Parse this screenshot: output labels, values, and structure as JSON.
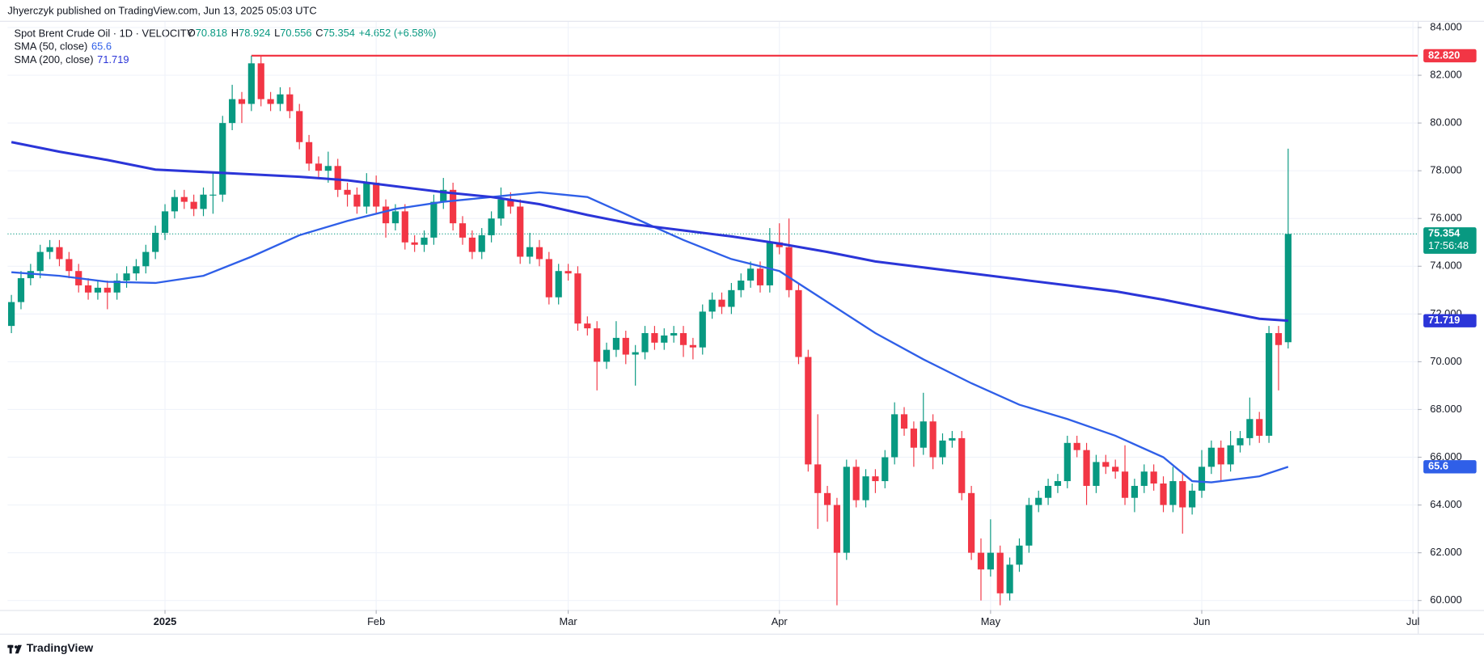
{
  "header": {
    "published": "Jhyerczyk published on TradingView.com, Jun 13, 2025 05:03 UTC",
    "symbol": "Spot Brent Crude Oil · 1D · VELOCITY",
    "ohlc": [
      {
        "key": "O",
        "value": "70.818"
      },
      {
        "key": "H",
        "value": "78.924"
      },
      {
        "key": "L",
        "value": "70.556"
      },
      {
        "key": "C",
        "value": "75.354"
      },
      {
        "key": "",
        "value": "+4.652 (+6.58%)"
      }
    ]
  },
  "chart_data": {
    "type": "candlestick",
    "up_color": "#089981",
    "down_color": "#f23645",
    "grid": true,
    "xlim": [
      -0.4,
      146.5
    ],
    "ylim": [
      59.6,
      84.4
    ],
    "xticks": [
      {
        "value": 16,
        "label": "2025"
      },
      {
        "value": 38,
        "label": "Feb"
      },
      {
        "value": 58,
        "label": "Mar"
      },
      {
        "value": 80,
        "label": "Apr"
      },
      {
        "value": 102,
        "label": "May"
      },
      {
        "value": 124,
        "label": "Jun"
      },
      {
        "value": 146,
        "label": "Jul"
      }
    ],
    "yticks": [
      {
        "value": 60,
        "label": "60.000"
      },
      {
        "value": 62,
        "label": "62.000"
      },
      {
        "value": 64,
        "label": "64.000"
      },
      {
        "value": 66,
        "label": "66.000"
      },
      {
        "value": 68,
        "label": "68.000"
      },
      {
        "value": 70,
        "label": "70.000"
      },
      {
        "value": 72,
        "label": "72.000"
      },
      {
        "value": 74,
        "label": "74.000"
      },
      {
        "value": 76,
        "label": "76.000"
      },
      {
        "value": 78,
        "label": "78.000"
      },
      {
        "value": 80,
        "label": "80.000"
      },
      {
        "value": 82,
        "label": "82.000"
      },
      {
        "value": 84,
        "label": "84.000"
      }
    ],
    "candles": {
      "open": [
        71.5,
        72.5,
        73.5,
        73.8,
        74.6,
        74.8,
        74.3,
        73.8,
        73.2,
        72.9,
        73.1,
        72.9,
        73.4,
        73.7,
        74.0,
        74.6,
        75.4,
        76.3,
        76.9,
        76.7,
        76.4,
        77.0,
        77.0,
        80.0,
        81.0,
        80.8,
        82.5,
        81.0,
        80.8,
        81.2,
        80.5,
        79.2,
        78.3,
        78.0,
        78.2,
        77.2,
        77.0,
        76.5,
        77.5,
        76.5,
        75.8,
        76.3,
        75.0,
        74.9,
        75.2,
        76.7,
        77.2,
        75.8,
        75.2,
        74.6,
        75.3,
        76.0,
        76.8,
        76.5,
        74.4,
        74.8,
        74.3,
        72.7,
        73.8,
        73.7,
        71.6,
        71.4,
        70.0,
        70.5,
        71.0,
        70.3,
        70.4,
        71.2,
        70.8,
        71.1,
        71.2,
        70.7,
        70.6,
        72.1,
        72.6,
        72.3,
        73.0,
        73.4,
        73.9,
        73.2,
        75.0,
        74.8,
        73.0,
        70.2,
        65.7,
        64.5,
        64.0,
        62.0,
        65.6,
        64.2,
        65.2,
        65.0,
        66.0,
        67.8,
        67.2,
        66.4,
        67.5,
        66.0,
        66.7,
        66.8,
        64.5,
        62.0,
        61.3,
        62.0,
        60.3,
        61.5,
        62.3,
        64.0,
        64.3,
        64.8,
        65.0,
        66.6,
        66.3,
        64.8,
        65.8,
        65.6,
        65.4,
        64.3,
        64.8,
        65.4,
        64.9,
        64.0,
        65.0,
        63.9,
        64.6,
        65.6,
        66.4,
        65.7,
        66.5,
        66.8,
        67.6,
        66.9,
        71.2,
        70.818
      ],
      "high": [
        72.8,
        73.8,
        74.1,
        74.9,
        75.1,
        75.1,
        74.6,
        74.1,
        73.5,
        73.4,
        73.4,
        73.7,
        74.0,
        74.3,
        74.9,
        75.7,
        76.6,
        77.2,
        77.2,
        77.0,
        77.3,
        77.9,
        80.3,
        81.6,
        81.3,
        82.82,
        82.8,
        81.3,
        81.5,
        81.5,
        80.8,
        79.5,
        78.6,
        78.8,
        78.5,
        77.5,
        77.3,
        77.9,
        77.8,
        76.8,
        76.6,
        76.6,
        75.3,
        75.5,
        77.0,
        77.7,
        77.5,
        76.1,
        75.5,
        75.6,
        76.3,
        77.3,
        77.1,
        76.8,
        75.4,
        75.1,
        74.6,
        74.1,
        74.1,
        74.0,
        71.9,
        71.7,
        70.8,
        71.7,
        71.3,
        70.7,
        71.5,
        71.5,
        71.4,
        71.5,
        71.5,
        71.0,
        72.4,
        72.9,
        72.9,
        73.3,
        73.7,
        74.2,
        74.2,
        75.6,
        75.8,
        76.0,
        73.3,
        70.5,
        67.8,
        64.8,
        64.3,
        65.9,
        65.9,
        65.5,
        65.5,
        66.3,
        68.3,
        68.1,
        67.5,
        68.7,
        67.8,
        67.0,
        67.1,
        67.1,
        64.8,
        62.6,
        63.4,
        62.3,
        61.8,
        62.6,
        64.3,
        64.6,
        65.1,
        65.3,
        66.9,
        66.9,
        66.6,
        66.1,
        66.1,
        65.9,
        66.5,
        65.1,
        65.7,
        65.7,
        65.2,
        65.6,
        65.3,
        64.9,
        66.3,
        66.7,
        66.7,
        67.1,
        67.1,
        68.5,
        67.9,
        71.5,
        71.5,
        78.924
      ],
      "low": [
        71.2,
        72.2,
        73.2,
        73.5,
        74.3,
        74.0,
        73.5,
        72.9,
        72.6,
        72.6,
        72.2,
        72.6,
        73.1,
        73.4,
        73.7,
        74.3,
        75.1,
        76.0,
        76.4,
        76.1,
        76.1,
        76.2,
        76.7,
        79.7,
        80.0,
        80.5,
        80.7,
        80.5,
        80.5,
        80.2,
        78.9,
        78.0,
        77.7,
        77.5,
        76.9,
        76.5,
        76.2,
        76.2,
        76.2,
        75.2,
        75.5,
        74.7,
        74.6,
        74.6,
        74.9,
        76.4,
        75.5,
        74.9,
        74.3,
        74.3,
        75.0,
        75.7,
        76.2,
        74.1,
        74.1,
        74.0,
        72.4,
        72.4,
        73.4,
        71.3,
        71.1,
        68.8,
        69.7,
        70.2,
        69.9,
        69.0,
        70.1,
        70.5,
        70.5,
        70.8,
        70.2,
        70.1,
        70.3,
        71.8,
        72.0,
        72.0,
        72.7,
        73.1,
        72.9,
        72.9,
        74.5,
        72.7,
        69.9,
        65.4,
        63.0,
        63.3,
        59.8,
        61.7,
        63.9,
        63.9,
        64.5,
        64.7,
        65.7,
        66.9,
        65.6,
        66.1,
        65.5,
        65.7,
        66.4,
        64.2,
        61.7,
        60.0,
        61.0,
        59.8,
        60.0,
        61.2,
        62.0,
        63.7,
        64.0,
        64.5,
        64.7,
        66.0,
        64.0,
        64.5,
        65.3,
        65.1,
        64.0,
        63.7,
        64.5,
        64.6,
        63.7,
        63.7,
        62.8,
        63.6,
        64.3,
        65.3,
        65.0,
        65.4,
        66.2,
        66.5,
        66.6,
        66.6,
        68.8,
        70.556
      ],
      "close": [
        72.5,
        73.5,
        73.8,
        74.6,
        74.8,
        74.3,
        73.8,
        73.2,
        72.9,
        73.1,
        72.9,
        73.4,
        73.7,
        74.0,
        74.6,
        75.4,
        76.3,
        76.9,
        76.7,
        76.4,
        77.0,
        77.0,
        80.0,
        81.0,
        80.8,
        82.5,
        81.0,
        80.8,
        81.2,
        80.5,
        79.2,
        78.3,
        78.0,
        78.2,
        77.2,
        77.0,
        76.5,
        77.5,
        76.5,
        75.8,
        76.3,
        75.0,
        74.9,
        75.2,
        76.7,
        77.2,
        75.8,
        75.2,
        74.6,
        75.3,
        76.0,
        76.8,
        76.5,
        74.4,
        74.8,
        74.3,
        72.7,
        73.8,
        73.7,
        71.6,
        71.4,
        70.0,
        70.5,
        71.0,
        70.3,
        70.4,
        71.2,
        70.8,
        71.1,
        71.2,
        70.7,
        70.6,
        72.1,
        72.6,
        72.3,
        73.0,
        73.4,
        73.9,
        73.2,
        75.0,
        74.8,
        73.0,
        70.2,
        65.7,
        64.5,
        64.0,
        62.0,
        65.6,
        64.2,
        65.2,
        65.0,
        66.0,
        67.8,
        67.2,
        66.4,
        67.5,
        66.0,
        66.7,
        66.8,
        64.5,
        62.0,
        61.3,
        62.0,
        60.3,
        61.5,
        62.3,
        64.0,
        64.3,
        64.8,
        65.0,
        66.6,
        66.3,
        64.8,
        65.8,
        65.6,
        65.4,
        64.3,
        64.8,
        65.4,
        64.9,
        64.0,
        65.0,
        63.9,
        64.6,
        65.6,
        66.4,
        65.7,
        66.5,
        66.8,
        67.6,
        66.9,
        71.2,
        70.7,
        75.354
      ]
    },
    "lines": [
      {
        "name": "SMA (50, close)",
        "legend_value": "65.6",
        "color": "#2f5fe8",
        "x": [
          0,
          5,
          10,
          15,
          20,
          25,
          30,
          35,
          40,
          45,
          50,
          55,
          60,
          65,
          70,
          75,
          80,
          85,
          90,
          95,
          100,
          105,
          110,
          115,
          120,
          123,
          125,
          130,
          133
        ],
        "values": [
          73.75,
          73.6,
          73.35,
          73.3,
          73.6,
          74.4,
          75.3,
          75.9,
          76.4,
          76.7,
          76.9,
          77.1,
          76.9,
          76.0,
          75.1,
          74.3,
          73.8,
          72.5,
          71.2,
          70.1,
          69.1,
          68.2,
          67.6,
          66.9,
          66.0,
          65.0,
          64.95,
          65.2,
          65.6
        ]
      },
      {
        "name": "SMA (200, close)",
        "legend_value": "71.719",
        "color": "#2b35d8",
        "x": [
          0,
          5,
          10,
          15,
          20,
          25,
          30,
          35,
          40,
          45,
          50,
          55,
          60,
          65,
          70,
          75,
          80,
          85,
          90,
          95,
          100,
          105,
          110,
          115,
          120,
          125,
          130,
          133
        ],
        "values": [
          79.2,
          78.8,
          78.45,
          78.05,
          77.95,
          77.85,
          77.75,
          77.6,
          77.35,
          77.1,
          76.9,
          76.6,
          76.15,
          75.75,
          75.5,
          75.25,
          74.95,
          74.6,
          74.2,
          73.95,
          73.7,
          73.45,
          73.2,
          72.95,
          72.6,
          72.2,
          71.8,
          71.719
        ]
      }
    ],
    "hline": {
      "value": 82.82,
      "label": "82.820",
      "color": "#f23645",
      "x_start": 25
    },
    "last_price": {
      "value": 75.354,
      "label": "75.354",
      "countdown": "17:56:48"
    }
  },
  "footer": {
    "brand": "TradingView"
  }
}
